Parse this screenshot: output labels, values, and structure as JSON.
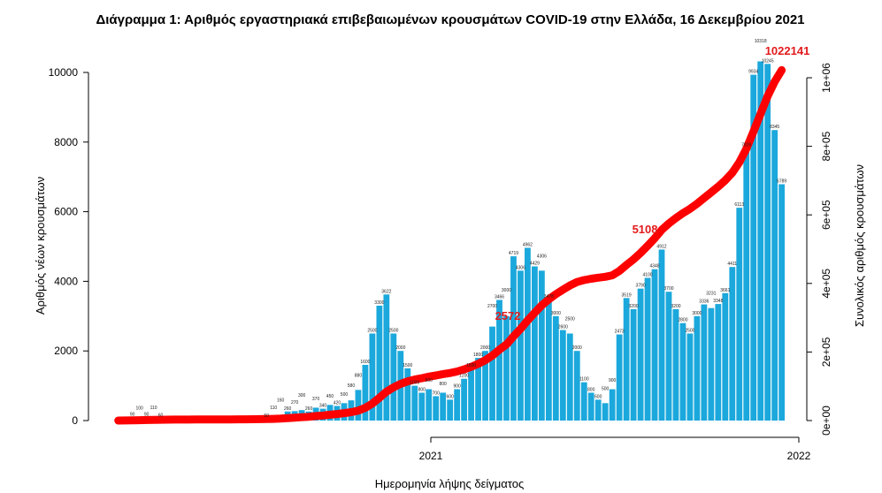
{
  "chart_data": {
    "type": "bar",
    "title": "Διάγραμμα 1: Αριθμός εργαστηριακά επιβεβαιωμένων κρουσμάτων COVID-19 στην Ελλάδα, 16 Δεκεμβρίου 2021",
    "xlabel": "Ημερομηνία λήψης δείγματος",
    "ylabel": "Αριθμός νέων κρουσμάτων",
    "y2label": "Συνολικός αριθμός κρουσμάτων",
    "ylim": [
      0,
      10000
    ],
    "y2lim": [
      0,
      1000000
    ],
    "yticks": [
      "0",
      "2000",
      "4000",
      "6000",
      "8000",
      "10000"
    ],
    "y2ticks": [
      "0e+00",
      "2e+05",
      "4e+05",
      "6e+05",
      "8e+05",
      "1e+06"
    ],
    "xticks": [
      "2021",
      "2022"
    ],
    "grid": false,
    "colors": {
      "bars": "#1ba8dc",
      "cumulative": "#ff0000",
      "annotation": "#e31a1c"
    },
    "dates": [
      "2020-02-26",
      "2020-03-04",
      "2020-03-11",
      "2020-03-18",
      "2020-03-25",
      "2020-04-01",
      "2020-04-08",
      "2020-04-15",
      "2020-04-22",
      "2020-04-29",
      "2020-05-06",
      "2020-05-13",
      "2020-05-20",
      "2020-05-27",
      "2020-06-03",
      "2020-06-10",
      "2020-06-17",
      "2020-06-24",
      "2020-07-01",
      "2020-07-08",
      "2020-07-15",
      "2020-07-22",
      "2020-07-29",
      "2020-08-05",
      "2020-08-12",
      "2020-08-19",
      "2020-08-26",
      "2020-09-02",
      "2020-09-09",
      "2020-09-16",
      "2020-09-23",
      "2020-09-30",
      "2020-10-07",
      "2020-10-14",
      "2020-10-21",
      "2020-10-28",
      "2020-11-04",
      "2020-11-11",
      "2020-11-18",
      "2020-11-25",
      "2020-12-02",
      "2020-12-09",
      "2020-12-16",
      "2020-12-23",
      "2020-12-30",
      "2021-01-06",
      "2021-01-13",
      "2021-01-20",
      "2021-01-27",
      "2021-02-03",
      "2021-02-10",
      "2021-02-17",
      "2021-02-24",
      "2021-03-03",
      "2021-03-10",
      "2021-03-17",
      "2021-03-24",
      "2021-03-31",
      "2021-04-07",
      "2021-04-14",
      "2021-04-21",
      "2021-04-28",
      "2021-05-05",
      "2021-05-12",
      "2021-05-19",
      "2021-05-26",
      "2021-06-02",
      "2021-06-09",
      "2021-06-16",
      "2021-06-23",
      "2021-06-30",
      "2021-07-07",
      "2021-07-14",
      "2021-07-21",
      "2021-07-28",
      "2021-08-04",
      "2021-08-11",
      "2021-08-18",
      "2021-08-25",
      "2021-09-01",
      "2021-09-08",
      "2021-09-15",
      "2021-09-22",
      "2021-09-29",
      "2021-10-06",
      "2021-10-13",
      "2021-10-20",
      "2021-10-27",
      "2021-11-03",
      "2021-11-10",
      "2021-11-17",
      "2021-11-24",
      "2021-12-01",
      "2021-12-08",
      "2021-12-15"
    ],
    "new_cases": [
      2,
      30,
      90,
      100,
      90,
      110,
      60,
      40,
      30,
      20,
      15,
      10,
      10,
      10,
      15,
      20,
      25,
      30,
      30,
      40,
      40,
      50,
      110,
      160,
      260,
      270,
      300,
      260,
      370,
      340,
      450,
      420,
      500,
      580,
      880,
      1600,
      2500,
      3300,
      3622,
      2500,
      2000,
      1500,
      1000,
      800,
      900,
      700,
      800,
      600,
      900,
      1200,
      1500,
      1800,
      2000,
      2700,
      3466,
      3000,
      4719,
      4306,
      4962,
      4429,
      4306,
      3478,
      3000,
      2600,
      2500,
      2000,
      1100,
      800,
      600,
      500,
      900,
      2473,
      3519,
      3200,
      3790,
      4100,
      4348,
      4912,
      3700,
      3200,
      2800,
      2500,
      3000,
      3336,
      3231,
      3348,
      3661,
      4411,
      6113,
      7826,
      9934,
      10318,
      10245,
      8345,
      6789
    ],
    "annotations": [
      {
        "date": "2021-04-01",
        "label": "2572"
      },
      {
        "date": "2021-08-15",
        "label": "5108"
      },
      {
        "date": "2021-12-15",
        "label": "1022141"
      }
    ],
    "cumulative_total": 1022141
  }
}
